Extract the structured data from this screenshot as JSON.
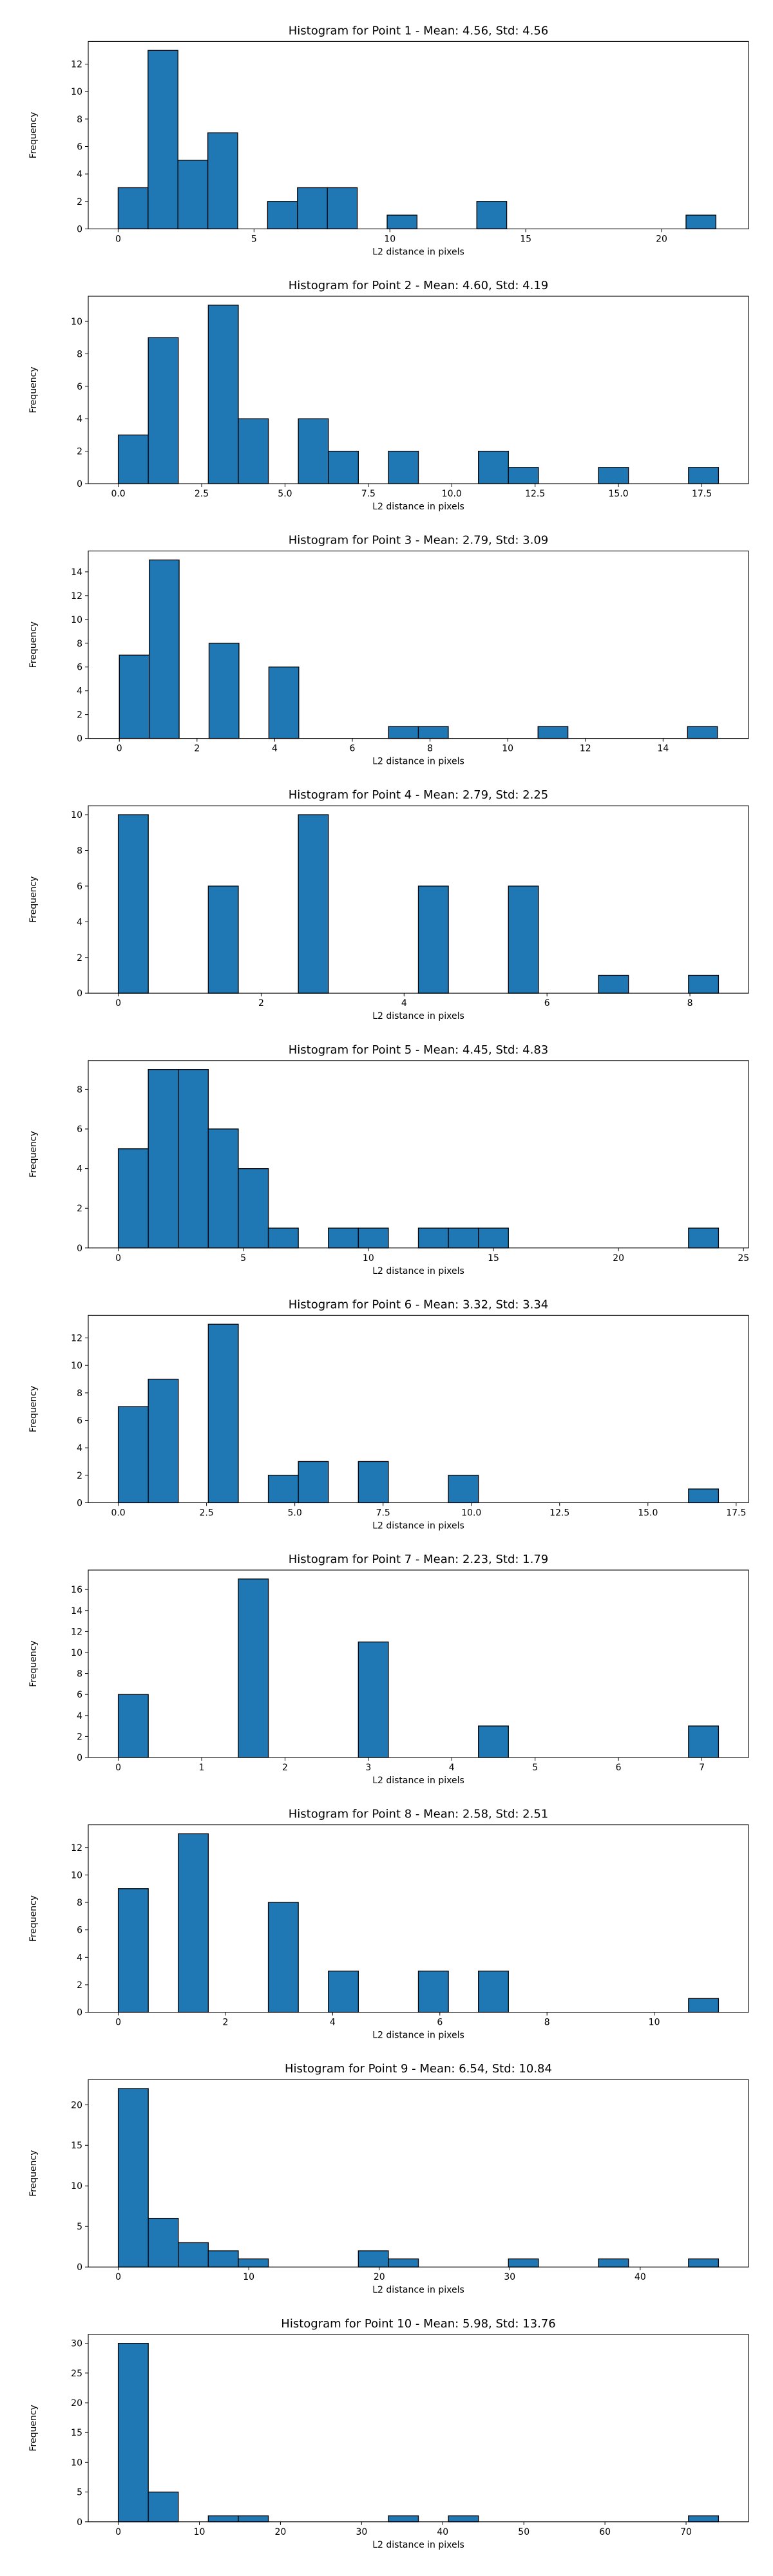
{
  "chart_data": [
    {
      "type": "bar",
      "title": "Histogram for Point 1 - Mean: 4.56, Std: 4.56",
      "xlabel": "L2 distance in pixels",
      "ylabel": "Frequency",
      "xlim": [
        -1.1,
        23.2
      ],
      "ylim": [
        0,
        13.65
      ],
      "xticks": [
        0,
        5,
        10,
        15,
        20
      ],
      "xticklabels": [
        "0",
        "5",
        "10",
        "15",
        "20"
      ],
      "yticks": [
        0,
        2,
        4,
        6,
        8,
        10,
        12
      ],
      "bins": [
        {
          "x0": 0.0,
          "x1": 1.1,
          "count": 3
        },
        {
          "x0": 1.1,
          "x1": 2.2,
          "count": 13
        },
        {
          "x0": 2.2,
          "x1": 3.3,
          "count": 5
        },
        {
          "x0": 3.3,
          "x1": 4.4,
          "count": 7
        },
        {
          "x0": 5.5,
          "x1": 6.6,
          "count": 2
        },
        {
          "x0": 6.6,
          "x1": 7.7,
          "count": 3
        },
        {
          "x0": 7.7,
          "x1": 8.8,
          "count": 3
        },
        {
          "x0": 9.9,
          "x1": 11.0,
          "count": 1
        },
        {
          "x0": 13.2,
          "x1": 14.3,
          "count": 2
        },
        {
          "x0": 20.9,
          "x1": 22.0,
          "count": 1
        }
      ]
    },
    {
      "type": "bar",
      "title": "Histogram for Point 2 - Mean: 4.60, Std: 4.19",
      "xlabel": "L2 distance in pixels",
      "ylabel": "Frequency",
      "xlim": [
        -0.9,
        18.9
      ],
      "ylim": [
        0,
        11.55
      ],
      "xticks": [
        0,
        2.5,
        5,
        7.5,
        10,
        12.5,
        15,
        17.5
      ],
      "xticklabels": [
        "0.0",
        "2.5",
        "5.0",
        "7.5",
        "10.0",
        "12.5",
        "15.0",
        "17.5"
      ],
      "yticks": [
        0,
        2,
        4,
        6,
        8,
        10
      ],
      "bins": [
        {
          "x0": 0.0,
          "x1": 0.9,
          "count": 3
        },
        {
          "x0": 0.9,
          "x1": 1.8,
          "count": 9
        },
        {
          "x0": 2.7,
          "x1": 3.6,
          "count": 11
        },
        {
          "x0": 3.6,
          "x1": 4.5,
          "count": 4
        },
        {
          "x0": 5.4,
          "x1": 6.3,
          "count": 4
        },
        {
          "x0": 6.3,
          "x1": 7.2,
          "count": 2
        },
        {
          "x0": 8.1,
          "x1": 9.0,
          "count": 2
        },
        {
          "x0": 10.8,
          "x1": 11.7,
          "count": 2
        },
        {
          "x0": 11.7,
          "x1": 12.6,
          "count": 1
        },
        {
          "x0": 14.4,
          "x1": 15.3,
          "count": 1
        },
        {
          "x0": 17.1,
          "x1": 18.0,
          "count": 1
        }
      ]
    },
    {
      "type": "bar",
      "title": "Histogram for Point 3 - Mean: 2.79, Std: 3.09",
      "xlabel": "L2 distance in pixels",
      "ylabel": "Frequency",
      "xlim": [
        -0.8,
        16.2
      ],
      "ylim": [
        0,
        15.75
      ],
      "xticks": [
        0,
        2,
        4,
        6,
        8,
        10,
        12,
        14
      ],
      "xticklabels": [
        "0",
        "2",
        "4",
        "6",
        "8",
        "10",
        "12",
        "14"
      ],
      "yticks": [
        0,
        2,
        4,
        6,
        8,
        10,
        12,
        14
      ],
      "bins": [
        {
          "x0": 0.0,
          "x1": 0.77,
          "count": 7
        },
        {
          "x0": 0.77,
          "x1": 1.54,
          "count": 15
        },
        {
          "x0": 2.31,
          "x1": 3.08,
          "count": 8
        },
        {
          "x0": 3.85,
          "x1": 4.62,
          "count": 6
        },
        {
          "x0": 6.93,
          "x1": 7.7,
          "count": 1
        },
        {
          "x0": 7.7,
          "x1": 8.47,
          "count": 1
        },
        {
          "x0": 10.78,
          "x1": 11.55,
          "count": 1
        },
        {
          "x0": 14.63,
          "x1": 15.4,
          "count": 1
        }
      ]
    },
    {
      "type": "bar",
      "title": "Histogram for Point 4 - Mean: 2.79, Std: 2.25",
      "xlabel": "L2 distance in pixels",
      "ylabel": "Frequency",
      "xlim": [
        -0.42,
        8.82
      ],
      "ylim": [
        0,
        10.5
      ],
      "xticks": [
        0,
        2,
        4,
        6,
        8
      ],
      "xticklabels": [
        "0",
        "2",
        "4",
        "6",
        "8"
      ],
      "yticks": [
        0,
        2,
        4,
        6,
        8,
        10
      ],
      "bins": [
        {
          "x0": 0.0,
          "x1": 0.42,
          "count": 10
        },
        {
          "x0": 1.26,
          "x1": 1.68,
          "count": 6
        },
        {
          "x0": 2.52,
          "x1": 2.94,
          "count": 10
        },
        {
          "x0": 4.2,
          "x1": 4.62,
          "count": 6
        },
        {
          "x0": 5.46,
          "x1": 5.88,
          "count": 6
        },
        {
          "x0": 6.72,
          "x1": 7.14,
          "count": 1
        },
        {
          "x0": 7.98,
          "x1": 8.4,
          "count": 1
        }
      ]
    },
    {
      "type": "bar",
      "title": "Histogram for Point 5 - Mean: 4.45, Std: 4.83",
      "xlabel": "L2 distance in pixels",
      "ylabel": "Frequency",
      "xlim": [
        -1.2,
        25.2
      ],
      "ylim": [
        0,
        9.45
      ],
      "xticks": [
        0,
        5,
        10,
        15,
        20,
        25
      ],
      "xticklabels": [
        "0",
        "5",
        "10",
        "15",
        "20",
        "25"
      ],
      "yticks": [
        0,
        2,
        4,
        6,
        8
      ],
      "bins": [
        {
          "x0": 0.0,
          "x1": 1.2,
          "count": 5
        },
        {
          "x0": 1.2,
          "x1": 2.4,
          "count": 9
        },
        {
          "x0": 2.4,
          "x1": 3.6,
          "count": 9
        },
        {
          "x0": 3.6,
          "x1": 4.8,
          "count": 6
        },
        {
          "x0": 4.8,
          "x1": 6.0,
          "count": 4
        },
        {
          "x0": 6.0,
          "x1": 7.2,
          "count": 1
        },
        {
          "x0": 8.4,
          "x1": 9.6,
          "count": 1
        },
        {
          "x0": 9.6,
          "x1": 10.8,
          "count": 1
        },
        {
          "x0": 12.0,
          "x1": 13.2,
          "count": 1
        },
        {
          "x0": 13.2,
          "x1": 14.4,
          "count": 1
        },
        {
          "x0": 14.4,
          "x1": 15.6,
          "count": 1
        },
        {
          "x0": 22.8,
          "x1": 24.0,
          "count": 1
        }
      ]
    },
    {
      "type": "bar",
      "title": "Histogram for Point 6 - Mean: 3.32, Std: 3.34",
      "xlabel": "L2 distance in pixels",
      "ylabel": "Frequency",
      "xlim": [
        -0.85,
        17.85
      ],
      "ylim": [
        0,
        13.65
      ],
      "xticks": [
        0,
        2.5,
        5,
        7.5,
        10,
        12.5,
        15,
        17.5
      ],
      "xticklabels": [
        "0.0",
        "2.5",
        "5.0",
        "7.5",
        "10.0",
        "12.5",
        "15.0",
        "17.5"
      ],
      "yticks": [
        0,
        2,
        4,
        6,
        8,
        10,
        12
      ],
      "bins": [
        {
          "x0": 0.0,
          "x1": 0.85,
          "count": 7
        },
        {
          "x0": 0.85,
          "x1": 1.7,
          "count": 9
        },
        {
          "x0": 2.55,
          "x1": 3.4,
          "count": 13
        },
        {
          "x0": 4.25,
          "x1": 5.1,
          "count": 2
        },
        {
          "x0": 5.1,
          "x1": 5.95,
          "count": 3
        },
        {
          "x0": 6.8,
          "x1": 7.65,
          "count": 3
        },
        {
          "x0": 9.35,
          "x1": 10.2,
          "count": 2
        },
        {
          "x0": 16.15,
          "x1": 17.0,
          "count": 1
        }
      ]
    },
    {
      "type": "bar",
      "title": "Histogram for Point 7 - Mean: 2.23, Std: 1.79",
      "xlabel": "L2 distance in pixels",
      "ylabel": "Frequency",
      "xlim": [
        -0.36,
        7.56
      ],
      "ylim": [
        0,
        17.85
      ],
      "xticks": [
        0,
        1,
        2,
        3,
        4,
        5,
        6,
        7
      ],
      "xticklabels": [
        "0",
        "1",
        "2",
        "3",
        "4",
        "5",
        "6",
        "7"
      ],
      "yticks": [
        0,
        2,
        4,
        6,
        8,
        10,
        12,
        14,
        16
      ],
      "bins": [
        {
          "x0": 0.0,
          "x1": 0.36,
          "count": 6
        },
        {
          "x0": 1.44,
          "x1": 1.8,
          "count": 17
        },
        {
          "x0": 2.88,
          "x1": 3.24,
          "count": 11
        },
        {
          "x0": 4.32,
          "x1": 4.68,
          "count": 3
        },
        {
          "x0": 6.84,
          "x1": 7.2,
          "count": 3
        }
      ]
    },
    {
      "type": "bar",
      "title": "Histogram for Point 8 - Mean: 2.58, Std: 2.51",
      "xlabel": "L2 distance in pixels",
      "ylabel": "Frequency",
      "xlim": [
        -0.56,
        11.76
      ],
      "ylim": [
        0,
        13.65
      ],
      "xticks": [
        0,
        2,
        4,
        6,
        8,
        10
      ],
      "xticklabels": [
        "0",
        "2",
        "4",
        "6",
        "8",
        "10"
      ],
      "yticks": [
        0,
        2,
        4,
        6,
        8,
        10,
        12
      ],
      "bins": [
        {
          "x0": 0.0,
          "x1": 0.56,
          "count": 9
        },
        {
          "x0": 1.12,
          "x1": 1.68,
          "count": 13
        },
        {
          "x0": 2.8,
          "x1": 3.36,
          "count": 8
        },
        {
          "x0": 3.92,
          "x1": 4.48,
          "count": 3
        },
        {
          "x0": 5.6,
          "x1": 6.16,
          "count": 3
        },
        {
          "x0": 6.72,
          "x1": 7.28,
          "count": 3
        },
        {
          "x0": 10.64,
          "x1": 11.2,
          "count": 1
        }
      ]
    },
    {
      "type": "bar",
      "title": "Histogram for Point 9 - Mean: 6.54, Std: 10.84",
      "xlabel": "L2 distance in pixels",
      "ylabel": "Frequency",
      "xlim": [
        -2.3,
        48.3
      ],
      "ylim": [
        0,
        23.1
      ],
      "xticks": [
        0,
        10,
        20,
        30,
        40
      ],
      "xticklabels": [
        "0",
        "10",
        "20",
        "30",
        "40"
      ],
      "yticks": [
        0,
        5,
        10,
        15,
        20
      ],
      "bins": [
        {
          "x0": 0.0,
          "x1": 2.3,
          "count": 22
        },
        {
          "x0": 2.3,
          "x1": 4.6,
          "count": 6
        },
        {
          "x0": 4.6,
          "x1": 6.9,
          "count": 3
        },
        {
          "x0": 6.9,
          "x1": 9.2,
          "count": 2
        },
        {
          "x0": 9.2,
          "x1": 11.5,
          "count": 1
        },
        {
          "x0": 18.4,
          "x1": 20.7,
          "count": 2
        },
        {
          "x0": 20.7,
          "x1": 23.0,
          "count": 1
        },
        {
          "x0": 29.9,
          "x1": 32.2,
          "count": 1
        },
        {
          "x0": 36.8,
          "x1": 39.1,
          "count": 1
        },
        {
          "x0": 43.7,
          "x1": 46.0,
          "count": 1
        }
      ]
    },
    {
      "type": "bar",
      "title": "Histogram for Point 10 - Mean: 5.98, Std: 13.76",
      "xlabel": "L2 distance in pixels",
      "ylabel": "Frequency",
      "xlim": [
        -3.7,
        77.7
      ],
      "ylim": [
        0,
        31.5
      ],
      "xticks": [
        0,
        10,
        20,
        30,
        40,
        50,
        60,
        70
      ],
      "xticklabels": [
        "0",
        "10",
        "20",
        "30",
        "40",
        "50",
        "60",
        "70"
      ],
      "yticks": [
        0,
        5,
        10,
        15,
        20,
        25,
        30
      ],
      "bins": [
        {
          "x0": 0.0,
          "x1": 3.7,
          "count": 30
        },
        {
          "x0": 3.7,
          "x1": 7.4,
          "count": 5
        },
        {
          "x0": 11.1,
          "x1": 14.8,
          "count": 1
        },
        {
          "x0": 14.8,
          "x1": 18.5,
          "count": 1
        },
        {
          "x0": 33.3,
          "x1": 37.0,
          "count": 1
        },
        {
          "x0": 40.7,
          "x1": 44.4,
          "count": 1
        },
        {
          "x0": 70.3,
          "x1": 74.0,
          "count": 1
        }
      ]
    }
  ]
}
